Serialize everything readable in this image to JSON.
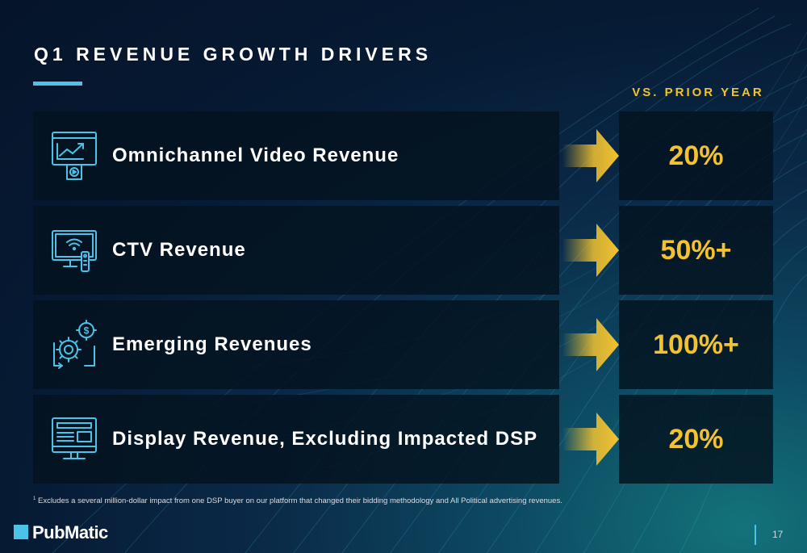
{
  "title": "Q1 REVENUE GROWTH DRIVERS",
  "comparison_label": "VS. PRIOR YEAR",
  "rows": [
    {
      "label": "Omnichannel Video Revenue",
      "value": "20%",
      "icon": "video-analytics-icon"
    },
    {
      "label": "CTV Revenue",
      "value": "50%+",
      "icon": "connected-tv-icon"
    },
    {
      "label": "Emerging Revenues",
      "value": "100%+",
      "icon": "gear-dollar-icon"
    },
    {
      "label": "Display Revenue, Excluding Impacted DSP",
      "value": "20%",
      "icon": "display-screen-icon"
    }
  ],
  "footnote": {
    "marker": "1",
    "text": "Excludes a several million-dollar impact from one DSP buyer on our platform that changed their bidding methodology and All Political advertising revenues."
  },
  "logo": {
    "text": "PubMatic"
  },
  "page_number": "17",
  "colors": {
    "accent_blue": "#4cc3e6",
    "accent_gold": "#f2c230",
    "background_dark": "#061a33",
    "panel": "#04121e"
  }
}
